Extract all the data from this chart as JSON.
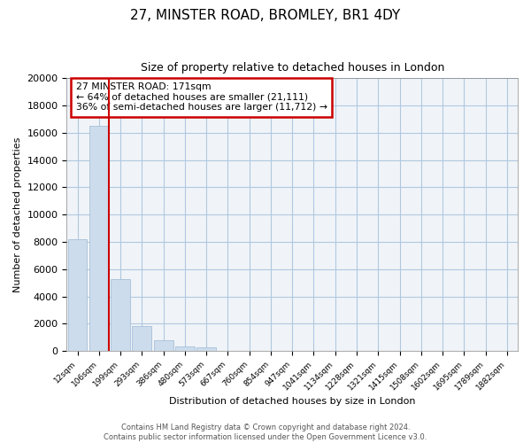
{
  "title": "27, MINSTER ROAD, BROMLEY, BR1 4DY",
  "subtitle": "Size of property relative to detached houses in London",
  "xlabel": "Distribution of detached houses by size in London",
  "ylabel": "Number of detached properties",
  "bar_color": "#ccdcec",
  "bar_edge_color": "#a8c0d8",
  "vline_color": "#cc0000",
  "annotation_box_color": "#cc0000",
  "annotation_lines": [
    "27 MINSTER ROAD: 171sqm",
    "← 64% of detached houses are smaller (21,111)",
    "36% of semi-detached houses are larger (11,712) →"
  ],
  "categories": [
    "12sqm",
    "106sqm",
    "199sqm",
    "293sqm",
    "386sqm",
    "480sqm",
    "573sqm",
    "667sqm",
    "760sqm",
    "854sqm",
    "947sqm",
    "1041sqm",
    "1134sqm",
    "1228sqm",
    "1321sqm",
    "1415sqm",
    "1508sqm",
    "1602sqm",
    "1695sqm",
    "1789sqm",
    "1882sqm"
  ],
  "values": [
    8200,
    16500,
    5300,
    1800,
    800,
    300,
    270,
    0,
    0,
    0,
    0,
    0,
    0,
    0,
    0,
    0,
    0,
    0,
    0,
    0,
    0
  ],
  "ylim": [
    0,
    20000
  ],
  "yticks": [
    0,
    2000,
    4000,
    6000,
    8000,
    10000,
    12000,
    14000,
    16000,
    18000,
    20000
  ],
  "footer_lines": [
    "Contains HM Land Registry data © Crown copyright and database right 2024.",
    "Contains public sector information licensed under the Open Government Licence v3.0."
  ],
  "figsize": [
    6.0,
    5.0
  ],
  "dpi": 100,
  "vline_bar_index": 1,
  "grid_color": "#b0c8e0",
  "bg_color": "#f0f4f8"
}
